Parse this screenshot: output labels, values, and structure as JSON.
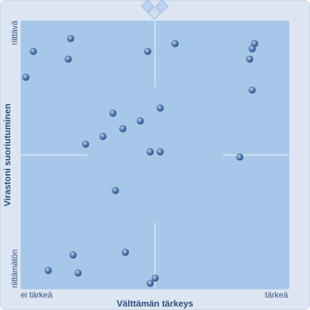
{
  "chart_data": {
    "type": "scatter",
    "title": "",
    "xlabel": "Välttämän tärkeys",
    "ylabel": "Virastoni suoriutuminen",
    "x_tick_labels": {
      "low": "ei tärkeä",
      "high": "tärkeä"
    },
    "y_tick_labels": {
      "low": "riittämätön",
      "high": "riittävä"
    },
    "xlim": [
      0,
      100
    ],
    "ylim": [
      0,
      100
    ],
    "grid": false,
    "quadrant_midlines": true,
    "colors": {
      "plot_background": "#a7c7e8",
      "frame_background": "#dde5f2",
      "point": "#4f77ad",
      "text": "#2f4f7f"
    },
    "points": [
      {
        "x": 19,
        "y": 96
      },
      {
        "x": 4,
        "y": 91
      },
      {
        "x": 18,
        "y": 88
      },
      {
        "x": 1,
        "y": 81
      },
      {
        "x": 61,
        "y": 94
      },
      {
        "x": 50,
        "y": 91
      },
      {
        "x": 93,
        "y": 94
      },
      {
        "x": 92,
        "y": 92
      },
      {
        "x": 91,
        "y": 88
      },
      {
        "x": 92,
        "y": 76
      },
      {
        "x": 55,
        "y": 69
      },
      {
        "x": 47,
        "y": 64
      },
      {
        "x": 32,
        "y": 58
      },
      {
        "x": 36,
        "y": 67
      },
      {
        "x": 40,
        "y": 61
      },
      {
        "x": 25,
        "y": 55
      },
      {
        "x": 51,
        "y": 52
      },
      {
        "x": 55,
        "y": 52
      },
      {
        "x": 87,
        "y": 50
      },
      {
        "x": 37,
        "y": 37
      },
      {
        "x": 41,
        "y": 13
      },
      {
        "x": 20,
        "y": 12
      },
      {
        "x": 10,
        "y": 6
      },
      {
        "x": 22,
        "y": 5
      },
      {
        "x": 53,
        "y": 3
      },
      {
        "x": 51,
        "y": 1
      }
    ]
  }
}
